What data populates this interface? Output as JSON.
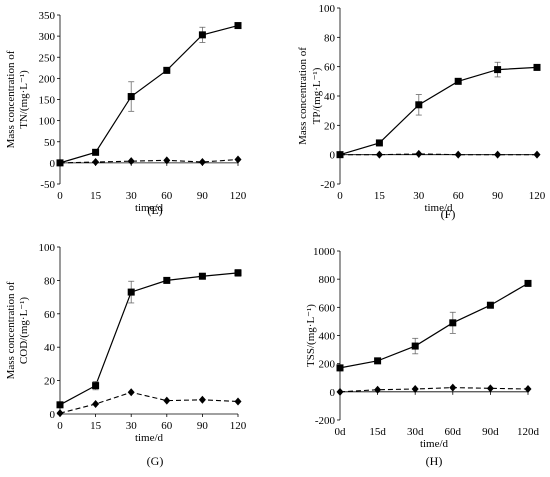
{
  "chart_data": [
    {
      "panel": "(E)",
      "type": "line",
      "ylabel": [
        "Mass concentration of",
        "TN/(mg·L⁻¹)"
      ],
      "xlabel": "time/d",
      "x": [
        0,
        15,
        30,
        60,
        90,
        120
      ],
      "x_tick_labels": [
        "0",
        "15",
        "30",
        "60",
        "90",
        "120"
      ],
      "ylim": [
        -50,
        350
      ],
      "y_ticks": [
        -50,
        0,
        50,
        100,
        150,
        200,
        250,
        300,
        350
      ],
      "series": [
        {
          "marker": "square",
          "line": "solid",
          "values": [
            0,
            25,
            157,
            219,
            303,
            325
          ],
          "errors": [
            0,
            3,
            35,
            7,
            18,
            4
          ]
        },
        {
          "marker": "diamond",
          "line": "dashed",
          "values": [
            0,
            2,
            4,
            6,
            2,
            8
          ],
          "errors": [
            0,
            0,
            0,
            0,
            0,
            0
          ]
        }
      ]
    },
    {
      "panel": "(F)",
      "type": "line",
      "ylabel": [
        "Mass concentration of",
        "TP/(mg·L⁻¹)"
      ],
      "xlabel": "time/d",
      "x": [
        0,
        15,
        30,
        60,
        90,
        120
      ],
      "x_tick_labels": [
        "0",
        "15",
        "30",
        "60",
        "90",
        "120"
      ],
      "ylim": [
        -20,
        100
      ],
      "y_ticks": [
        -20,
        0,
        20,
        40,
        60,
        80,
        100
      ],
      "series": [
        {
          "marker": "square",
          "line": "solid",
          "values": [
            0,
            8,
            34,
            50,
            58,
            59.5
          ],
          "errors": [
            0,
            1,
            7,
            1,
            5,
            1
          ]
        },
        {
          "marker": "diamond",
          "line": "dashed",
          "values": [
            0,
            0,
            0.5,
            0,
            0,
            0
          ],
          "errors": [
            0,
            0,
            0,
            0,
            0,
            0
          ]
        }
      ]
    },
    {
      "panel": "(G)",
      "type": "line",
      "ylabel": [
        "Mass concentration of",
        "COD/(mg·L⁻¹)"
      ],
      "xlabel": "time/d",
      "x": [
        0,
        15,
        30,
        60,
        90,
        120
      ],
      "x_tick_labels": [
        "0",
        "15",
        "30",
        "60",
        "90",
        "120"
      ],
      "ylim": [
        0,
        100
      ],
      "y_ticks": [
        0,
        20,
        40,
        60,
        80,
        100
      ],
      "series": [
        {
          "marker": "square",
          "line": "solid",
          "values": [
            5.5,
            17,
            73,
            80,
            82.5,
            84.5
          ],
          "errors": [
            0,
            2.5,
            6.5,
            0.5,
            1,
            2
          ]
        },
        {
          "marker": "diamond",
          "line": "dashed",
          "values": [
            0.5,
            6,
            13,
            8,
            8.5,
            7.5
          ],
          "errors": [
            0,
            0,
            0,
            0,
            0,
            0
          ]
        }
      ]
    },
    {
      "panel": "(H)",
      "type": "line",
      "ylabel": [
        "TSS/(mg·L⁻¹)"
      ],
      "xlabel": "time/d",
      "x": [
        0,
        15,
        30,
        60,
        90,
        120
      ],
      "x_tick_labels": [
        "0d",
        "15d",
        "30d",
        "60d",
        "90d",
        "120d"
      ],
      "ylim": [
        -200,
        1000
      ],
      "y_ticks": [
        -200,
        0,
        200,
        400,
        600,
        800,
        1000
      ],
      "series": [
        {
          "marker": "square",
          "line": "solid",
          "values": [
            170,
            220,
            325,
            490,
            615,
            770
          ],
          "errors": [
            0,
            10,
            55,
            75,
            15,
            10
          ]
        },
        {
          "marker": "diamond",
          "line": "dashed",
          "values": [
            0,
            15,
            20,
            30,
            25,
            20
          ],
          "errors": [
            0,
            0,
            0,
            0,
            0,
            0
          ]
        }
      ]
    }
  ]
}
